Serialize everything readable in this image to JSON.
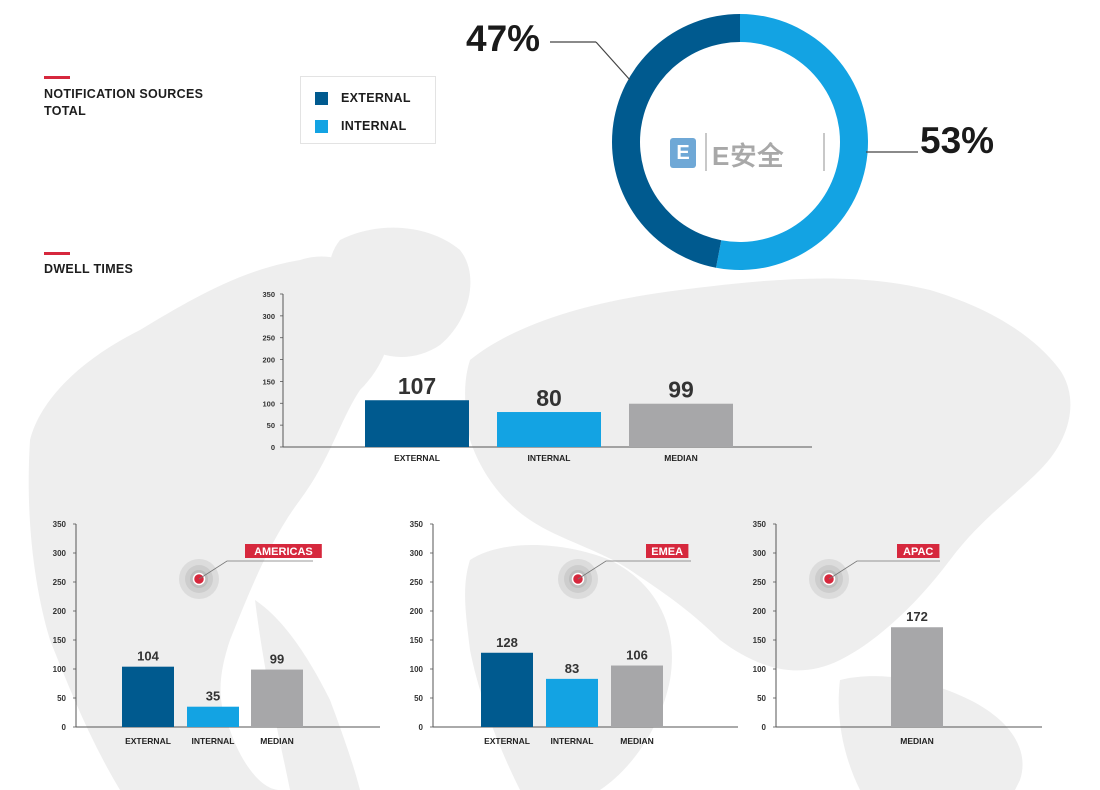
{
  "sections": {
    "notification_title_line1": "NOTIFICATION SOURCES",
    "notification_title_line2": "TOTAL",
    "dwell_title": "DWELL TIMES"
  },
  "legend": {
    "external_label": "EXTERNAL",
    "internal_label": "INTERNAL"
  },
  "watermark": {
    "logo_letter": "E",
    "text": "E安全"
  },
  "colors": {
    "external": "#005a8f",
    "internal": "#13a3e3",
    "median": "#a7a7a9",
    "accent": "#d6283d",
    "axis": "#555555",
    "map": "#eeeeee"
  },
  "chart_data": [
    {
      "type": "pie",
      "labels": [
        "EXTERNAL",
        "INTERNAL"
      ],
      "values": [
        47,
        53
      ],
      "value_labels": [
        "47%",
        "53%"
      ]
    },
    {
      "type": "bar",
      "categories": [
        "EXTERNAL",
        "INTERNAL",
        "MEDIAN"
      ],
      "values": [
        107,
        80,
        99
      ],
      "ylim": [
        0,
        350
      ],
      "yticks": [
        0,
        50,
        100,
        150,
        200,
        250,
        300,
        350
      ]
    },
    {
      "type": "bar",
      "region": "AMERICAS",
      "categories": [
        "EXTERNAL",
        "INTERNAL",
        "MEDIAN"
      ],
      "values": [
        104,
        35,
        99
      ],
      "ylim": [
        0,
        350
      ],
      "yticks": [
        0,
        50,
        100,
        150,
        200,
        250,
        300,
        350
      ]
    },
    {
      "type": "bar",
      "region": "EMEA",
      "categories": [
        "EXTERNAL",
        "INTERNAL",
        "MEDIAN"
      ],
      "values": [
        128,
        83,
        106
      ],
      "ylim": [
        0,
        350
      ],
      "yticks": [
        0,
        50,
        100,
        150,
        200,
        250,
        300,
        350
      ]
    },
    {
      "type": "bar",
      "region": "APAC",
      "categories": [
        "MEDIAN"
      ],
      "values": [
        172
      ],
      "ylim": [
        0,
        350
      ],
      "yticks": [
        0,
        50,
        100,
        150,
        200,
        250,
        300,
        350
      ]
    }
  ]
}
